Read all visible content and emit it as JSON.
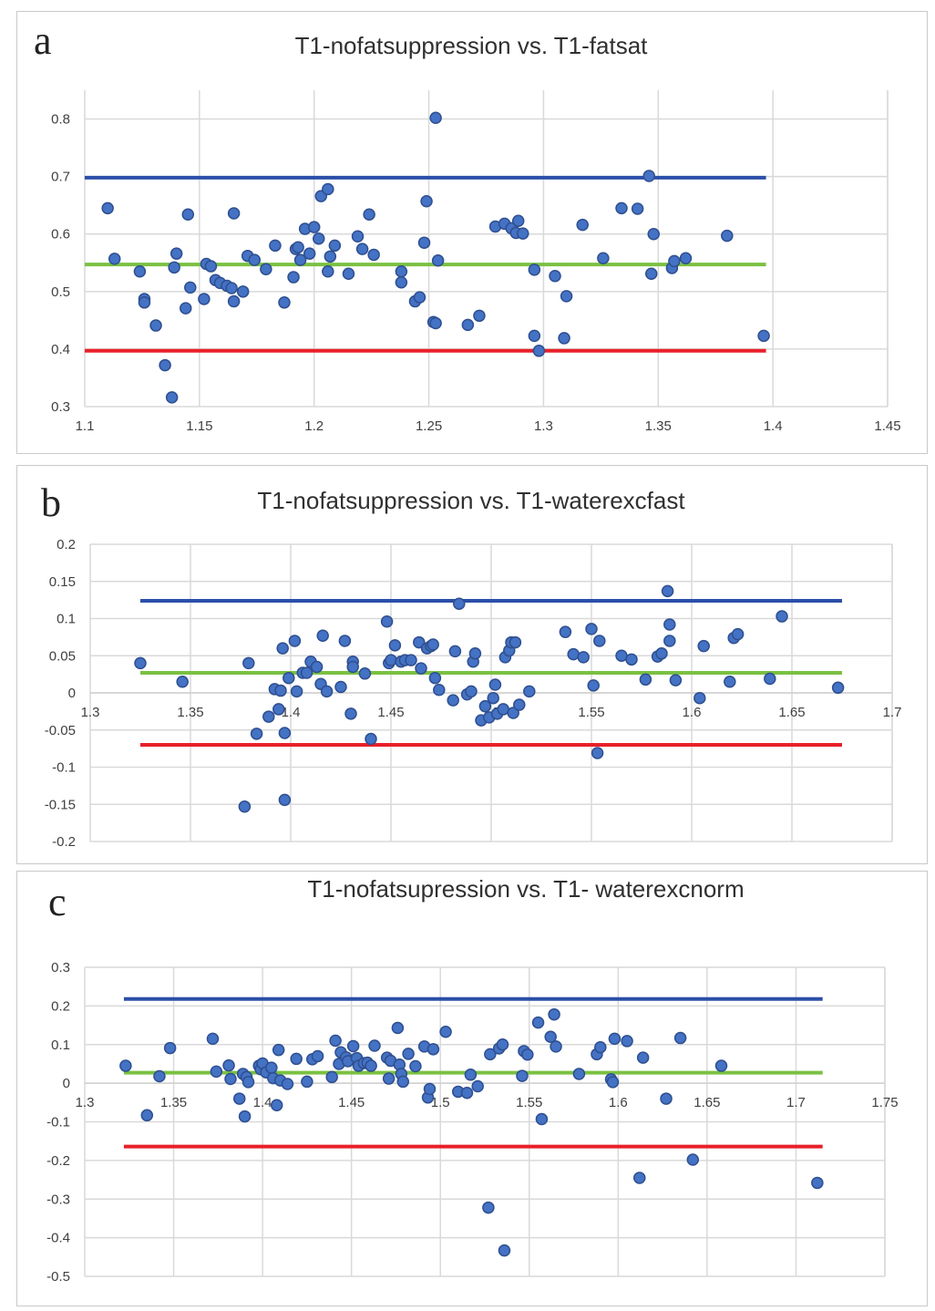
{
  "chart_data": [
    {
      "type": "scatter",
      "panel_letter": "a",
      "title": "T1-nofatsuppression vs. T1-fatsat",
      "xlim": [
        1.1,
        1.45
      ],
      "ylim": [
        0.3,
        0.85
      ],
      "x_ticks": [
        "1.1",
        "1.15",
        "1.2",
        "1.25",
        "1.3",
        "1.35",
        "1.4",
        "1.45"
      ],
      "y_ticks": [
        "0.3",
        "0.4",
        "0.5",
        "0.6",
        "0.7",
        "0.8"
      ],
      "x_axis_at": "bottom",
      "grid": true,
      "lines": [
        {
          "name": "upper limit",
          "color": "#2b4fa8",
          "y": 0.698,
          "x_range": [
            1.1,
            1.397
          ]
        },
        {
          "name": "mean",
          "color": "#7ac142",
          "y": 0.547,
          "x_range": [
            1.1,
            1.397
          ]
        },
        {
          "name": "lower limit",
          "color": "#e8202a",
          "y": 0.397,
          "x_range": [
            1.1,
            1.397
          ]
        }
      ],
      "points": [
        [
          1.11,
          0.645
        ],
        [
          1.113,
          0.557
        ],
        [
          1.124,
          0.535
        ],
        [
          1.126,
          0.487
        ],
        [
          1.126,
          0.481
        ],
        [
          1.131,
          0.441
        ],
        [
          1.135,
          0.372
        ],
        [
          1.138,
          0.316
        ],
        [
          1.139,
          0.542
        ],
        [
          1.14,
          0.566
        ],
        [
          1.144,
          0.471
        ],
        [
          1.145,
          0.634
        ],
        [
          1.146,
          0.507
        ],
        [
          1.152,
          0.487
        ],
        [
          1.153,
          0.548
        ],
        [
          1.155,
          0.544
        ],
        [
          1.157,
          0.52
        ],
        [
          1.159,
          0.515
        ],
        [
          1.162,
          0.51
        ],
        [
          1.164,
          0.506
        ],
        [
          1.165,
          0.483
        ],
        [
          1.165,
          0.636
        ],
        [
          1.169,
          0.5
        ],
        [
          1.171,
          0.562
        ],
        [
          1.174,
          0.555
        ],
        [
          1.179,
          0.539
        ],
        [
          1.183,
          0.58
        ],
        [
          1.187,
          0.481
        ],
        [
          1.191,
          0.525
        ],
        [
          1.192,
          0.574
        ],
        [
          1.193,
          0.577
        ],
        [
          1.194,
          0.555
        ],
        [
          1.196,
          0.609
        ],
        [
          1.198,
          0.566
        ],
        [
          1.2,
          0.612
        ],
        [
          1.202,
          0.592
        ],
        [
          1.203,
          0.666
        ],
        [
          1.206,
          0.678
        ],
        [
          1.206,
          0.535
        ],
        [
          1.207,
          0.561
        ],
        [
          1.209,
          0.58
        ],
        [
          1.215,
          0.531
        ],
        [
          1.219,
          0.596
        ],
        [
          1.221,
          0.574
        ],
        [
          1.224,
          0.634
        ],
        [
          1.226,
          0.564
        ],
        [
          1.238,
          0.535
        ],
        [
          1.238,
          0.516
        ],
        [
          1.244,
          0.483
        ],
        [
          1.246,
          0.49
        ],
        [
          1.248,
          0.585
        ],
        [
          1.249,
          0.657
        ],
        [
          1.252,
          0.447
        ],
        [
          1.253,
          0.445
        ],
        [
          1.253,
          0.802
        ],
        [
          1.254,
          0.554
        ],
        [
          1.267,
          0.442
        ],
        [
          1.272,
          0.458
        ],
        [
          1.279,
          0.613
        ],
        [
          1.283,
          0.618
        ],
        [
          1.286,
          0.61
        ],
        [
          1.288,
          0.602
        ],
        [
          1.289,
          0.623
        ],
        [
          1.291,
          0.601
        ],
        [
          1.296,
          0.538
        ],
        [
          1.296,
          0.423
        ],
        [
          1.298,
          0.397
        ],
        [
          1.305,
          0.527
        ],
        [
          1.309,
          0.419
        ],
        [
          1.31,
          0.492
        ],
        [
          1.317,
          0.616
        ],
        [
          1.326,
          0.558
        ],
        [
          1.334,
          0.645
        ],
        [
          1.341,
          0.644
        ],
        [
          1.346,
          0.701
        ],
        [
          1.347,
          0.531
        ],
        [
          1.348,
          0.6
        ],
        [
          1.356,
          0.541
        ],
        [
          1.357,
          0.553
        ],
        [
          1.362,
          0.558
        ],
        [
          1.38,
          0.597
        ],
        [
          1.396,
          0.423
        ]
      ]
    },
    {
      "type": "scatter",
      "panel_letter": "b",
      "title": "T1-nofatsuppression vs. T1-waterexcfast",
      "xlim": [
        1.3,
        1.7
      ],
      "ylim": [
        -0.2,
        0.2
      ],
      "x_ticks": [
        "1.3",
        "1.35",
        "1.4",
        "1.45",
        "1.5",
        "1.55",
        "1.6",
        "1.65",
        "1.7"
      ],
      "y_ticks": [
        "-0.2",
        "-0.15",
        "-0.1",
        "-0.05",
        "0",
        "0.05",
        "0.1",
        "0.15",
        "0.2"
      ],
      "x_axis_at": "zero",
      "grid": true,
      "lines": [
        {
          "name": "upper limit",
          "color": "#2b4fa8",
          "y": 0.124,
          "x_range": [
            1.325,
            1.675
          ]
        },
        {
          "name": "mean",
          "color": "#7ac142",
          "y": 0.027,
          "x_range": [
            1.325,
            1.675
          ]
        },
        {
          "name": "lower limit",
          "color": "#e8202a",
          "y": -0.07,
          "x_range": [
            1.325,
            1.675
          ]
        }
      ],
      "points": [
        [
          1.325,
          0.04
        ],
        [
          1.346,
          0.015
        ],
        [
          1.377,
          -0.153
        ],
        [
          1.379,
          0.04
        ],
        [
          1.383,
          -0.055
        ],
        [
          1.389,
          -0.032
        ],
        [
          1.392,
          0.005
        ],
        [
          1.394,
          -0.022
        ],
        [
          1.395,
          0.003
        ],
        [
          1.396,
          0.06
        ],
        [
          1.397,
          -0.054
        ],
        [
          1.397,
          -0.144
        ],
        [
          1.399,
          0.02
        ],
        [
          1.402,
          0.07
        ],
        [
          1.403,
          0.002
        ],
        [
          1.406,
          0.027
        ],
        [
          1.408,
          0.027
        ],
        [
          1.41,
          0.042
        ],
        [
          1.413,
          0.035
        ],
        [
          1.415,
          0.012
        ],
        [
          1.416,
          0.077
        ],
        [
          1.418,
          0.002
        ],
        [
          1.425,
          0.008
        ],
        [
          1.427,
          0.07
        ],
        [
          1.43,
          -0.028
        ],
        [
          1.431,
          0.042
        ],
        [
          1.431,
          0.035
        ],
        [
          1.437,
          0.026
        ],
        [
          1.44,
          -0.062
        ],
        [
          1.448,
          0.096
        ],
        [
          1.449,
          0.04
        ],
        [
          1.45,
          0.044
        ],
        [
          1.452,
          0.064
        ],
        [
          1.455,
          0.042
        ],
        [
          1.457,
          0.044
        ],
        [
          1.46,
          0.044
        ],
        [
          1.464,
          0.068
        ],
        [
          1.465,
          0.033
        ],
        [
          1.468,
          0.06
        ],
        [
          1.47,
          0.063
        ],
        [
          1.471,
          0.065
        ],
        [
          1.472,
          0.02
        ],
        [
          1.474,
          0.004
        ],
        [
          1.481,
          -0.01
        ],
        [
          1.482,
          0.056
        ],
        [
          1.484,
          0.12
        ],
        [
          1.488,
          -0.002
        ],
        [
          1.49,
          0.002
        ],
        [
          1.491,
          0.042
        ],
        [
          1.492,
          0.053
        ],
        [
          1.495,
          -0.037
        ],
        [
          1.497,
          -0.018
        ],
        [
          1.499,
          -0.033
        ],
        [
          1.501,
          -0.007
        ],
        [
          1.502,
          0.011
        ],
        [
          1.503,
          -0.028
        ],
        [
          1.506,
          -0.022
        ],
        [
          1.507,
          0.048
        ],
        [
          1.509,
          0.057
        ],
        [
          1.51,
          0.068
        ],
        [
          1.511,
          -0.027
        ],
        [
          1.512,
          0.068
        ],
        [
          1.514,
          -0.016
        ],
        [
          1.519,
          0.002
        ],
        [
          1.537,
          0.082
        ],
        [
          1.541,
          0.052
        ],
        [
          1.546,
          0.048
        ],
        [
          1.55,
          0.086
        ],
        [
          1.551,
          0.01
        ],
        [
          1.553,
          -0.081
        ],
        [
          1.554,
          0.07
        ],
        [
          1.565,
          0.05
        ],
        [
          1.57,
          0.045
        ],
        [
          1.577,
          0.018
        ],
        [
          1.583,
          0.049
        ],
        [
          1.585,
          0.053
        ],
        [
          1.588,
          0.137
        ],
        [
          1.589,
          0.092
        ],
        [
          1.589,
          0.07
        ],
        [
          1.592,
          0.017
        ],
        [
          1.604,
          -0.007
        ],
        [
          1.606,
          0.063
        ],
        [
          1.619,
          0.015
        ],
        [
          1.621,
          0.074
        ],
        [
          1.623,
          0.079
        ],
        [
          1.639,
          0.019
        ],
        [
          1.645,
          0.103
        ],
        [
          1.673,
          0.007
        ]
      ]
    },
    {
      "type": "scatter",
      "panel_letter": "c",
      "title": "T1-nofatsupression vs. T1- waterexcnorm",
      "xlim": [
        1.3,
        1.75
      ],
      "ylim": [
        -0.5,
        0.3
      ],
      "x_ticks": [
        "1.3",
        "1.35",
        "1.4",
        "1.45",
        "1.5",
        "1.55",
        "1.6",
        "1.65",
        "1.7",
        "1.75"
      ],
      "y_ticks": [
        "-0.5",
        "-0.4",
        "-0.3",
        "-0.2",
        "-0.1",
        "0",
        "0.1",
        "0.2",
        "0.3"
      ],
      "x_axis_at": "zero",
      "grid": true,
      "lines": [
        {
          "name": "upper limit",
          "color": "#2b4fa8",
          "y": 0.218,
          "x_range": [
            1.322,
            1.715
          ]
        },
        {
          "name": "mean",
          "color": "#7ac142",
          "y": 0.027,
          "x_range": [
            1.322,
            1.715
          ]
        },
        {
          "name": "lower limit",
          "color": "#e8202a",
          "y": -0.164,
          "x_range": [
            1.322,
            1.715
          ]
        }
      ],
      "points": [
        [
          1.323,
          0.045
        ],
        [
          1.335,
          -0.083
        ],
        [
          1.342,
          0.018
        ],
        [
          1.348,
          0.091
        ],
        [
          1.372,
          0.115
        ],
        [
          1.374,
          0.03
        ],
        [
          1.381,
          0.046
        ],
        [
          1.382,
          0.011
        ],
        [
          1.387,
          -0.04
        ],
        [
          1.389,
          0.024
        ],
        [
          1.39,
          -0.086
        ],
        [
          1.391,
          0.016
        ],
        [
          1.392,
          0.003
        ],
        [
          1.398,
          0.045
        ],
        [
          1.399,
          0.036
        ],
        [
          1.4,
          0.051
        ],
        [
          1.402,
          0.028
        ],
        [
          1.405,
          0.04
        ],
        [
          1.406,
          0.013
        ],
        [
          1.408,
          -0.057
        ],
        [
          1.409,
          0.086
        ],
        [
          1.41,
          0.007
        ],
        [
          1.414,
          -0.002
        ],
        [
          1.419,
          0.063
        ],
        [
          1.425,
          0.004
        ],
        [
          1.428,
          0.062
        ],
        [
          1.431,
          0.07
        ],
        [
          1.439,
          0.016
        ],
        [
          1.441,
          0.11
        ],
        [
          1.443,
          0.05
        ],
        [
          1.444,
          0.08
        ],
        [
          1.447,
          0.067
        ],
        [
          1.448,
          0.057
        ],
        [
          1.451,
          0.096
        ],
        [
          1.453,
          0.065
        ],
        [
          1.454,
          0.045
        ],
        [
          1.457,
          0.052
        ],
        [
          1.459,
          0.053
        ],
        [
          1.461,
          0.045
        ],
        [
          1.463,
          0.097
        ],
        [
          1.47,
          0.066
        ],
        [
          1.471,
          0.012
        ],
        [
          1.472,
          0.058
        ],
        [
          1.476,
          0.143
        ],
        [
          1.477,
          0.048
        ],
        [
          1.478,
          0.024
        ],
        [
          1.479,
          0.004
        ],
        [
          1.482,
          0.076
        ],
        [
          1.486,
          0.044
        ],
        [
          1.491,
          0.095
        ],
        [
          1.493,
          -0.037
        ],
        [
          1.494,
          -0.015
        ],
        [
          1.496,
          0.088
        ],
        [
          1.503,
          0.133
        ],
        [
          1.51,
          -0.022
        ],
        [
          1.515,
          -0.025
        ],
        [
          1.517,
          0.022
        ],
        [
          1.521,
          -0.008
        ],
        [
          1.527,
          -0.322
        ],
        [
          1.528,
          0.075
        ],
        [
          1.533,
          0.09
        ],
        [
          1.535,
          0.1
        ],
        [
          1.536,
          -0.433
        ],
        [
          1.546,
          0.019
        ],
        [
          1.547,
          0.083
        ],
        [
          1.549,
          0.074
        ],
        [
          1.555,
          0.157
        ],
        [
          1.557,
          -0.093
        ],
        [
          1.562,
          0.12
        ],
        [
          1.564,
          0.178
        ],
        [
          1.565,
          0.095
        ],
        [
          1.578,
          0.024
        ],
        [
          1.588,
          0.075
        ],
        [
          1.59,
          0.093
        ],
        [
          1.596,
          0.01
        ],
        [
          1.597,
          0.003
        ],
        [
          1.598,
          0.115
        ],
        [
          1.605,
          0.109
        ],
        [
          1.612,
          -0.245
        ],
        [
          1.614,
          0.066
        ],
        [
          1.627,
          -0.04
        ],
        [
          1.635,
          0.117
        ],
        [
          1.642,
          -0.198
        ],
        [
          1.658,
          0.045
        ],
        [
          1.712,
          -0.258
        ]
      ]
    }
  ]
}
